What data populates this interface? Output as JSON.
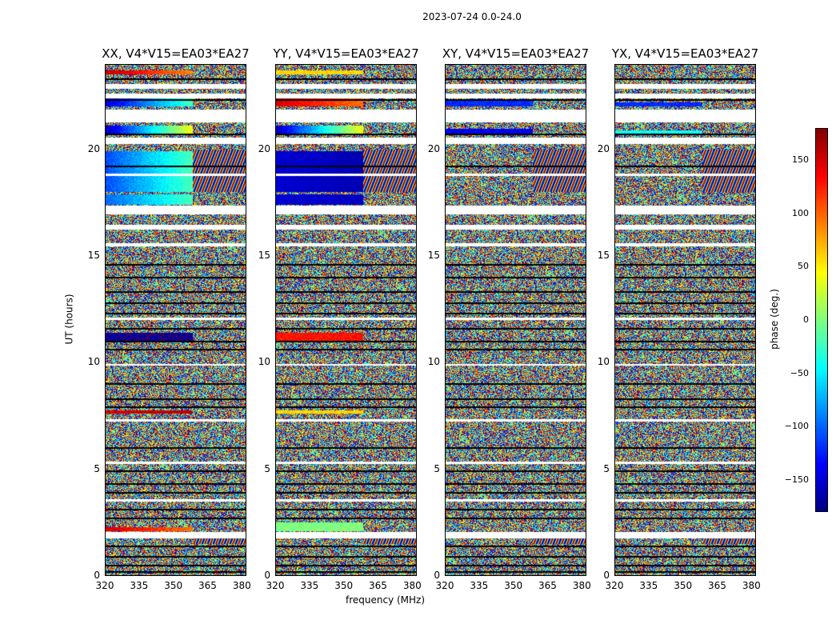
{
  "chart_data": {
    "type": "heatmap",
    "suptitle": "2023-07-24 0.0-24.0",
    "xlabel": "frequency (MHz)",
    "ylabel": "UT (hours)",
    "xlim": [
      320,
      382
    ],
    "ylim": [
      0,
      24
    ],
    "xticks": [
      320,
      335,
      350,
      365,
      380
    ],
    "yticks": [
      0,
      5,
      10,
      15,
      20
    ],
    "colormap": "jet",
    "panels": [
      {
        "title": "XX, V4*V15=EA03*EA27"
      },
      {
        "title": "YY, V4*V15=EA03*EA27"
      },
      {
        "title": "XY, V4*V15=EA03*EA27"
      },
      {
        "title": "YX, V4*V15=EA03*EA27"
      }
    ],
    "colorbar": {
      "label": "phase (deg.)",
      "range": [
        -180,
        180
      ],
      "ticks": [
        150,
        100,
        50,
        0,
        -50,
        -100,
        -150
      ],
      "tick_labels": [
        "150",
        "100",
        "50",
        "0",
        "−50",
        "−100",
        "−150"
      ]
    }
  }
}
